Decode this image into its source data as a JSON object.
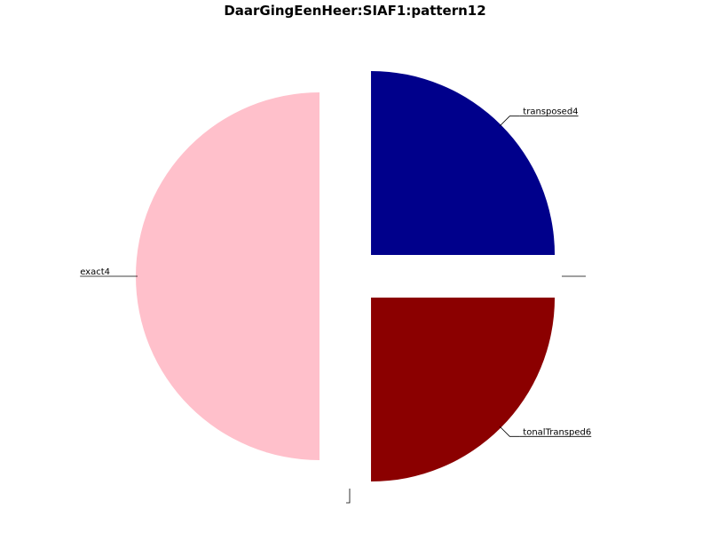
{
  "chart_data": {
    "type": "pie",
    "title": "DaarGingEenHeer:SIAF1:pattern12",
    "slices": [
      {
        "label": "transposed4",
        "value": 1,
        "color": "#00008b",
        "exploded": true
      },
      {
        "label": "",
        "value": 0,
        "color": "#ffffff",
        "exploded": true
      },
      {
        "label": "tonalTransped6",
        "value": 1,
        "color": "#8b0000",
        "exploded": true
      },
      {
        "label": "",
        "value": 0,
        "color": "#ffffff",
        "exploded": true
      },
      {
        "label": "exact4",
        "value": 2,
        "color": "#ffc0cb",
        "exploded": true
      }
    ]
  }
}
